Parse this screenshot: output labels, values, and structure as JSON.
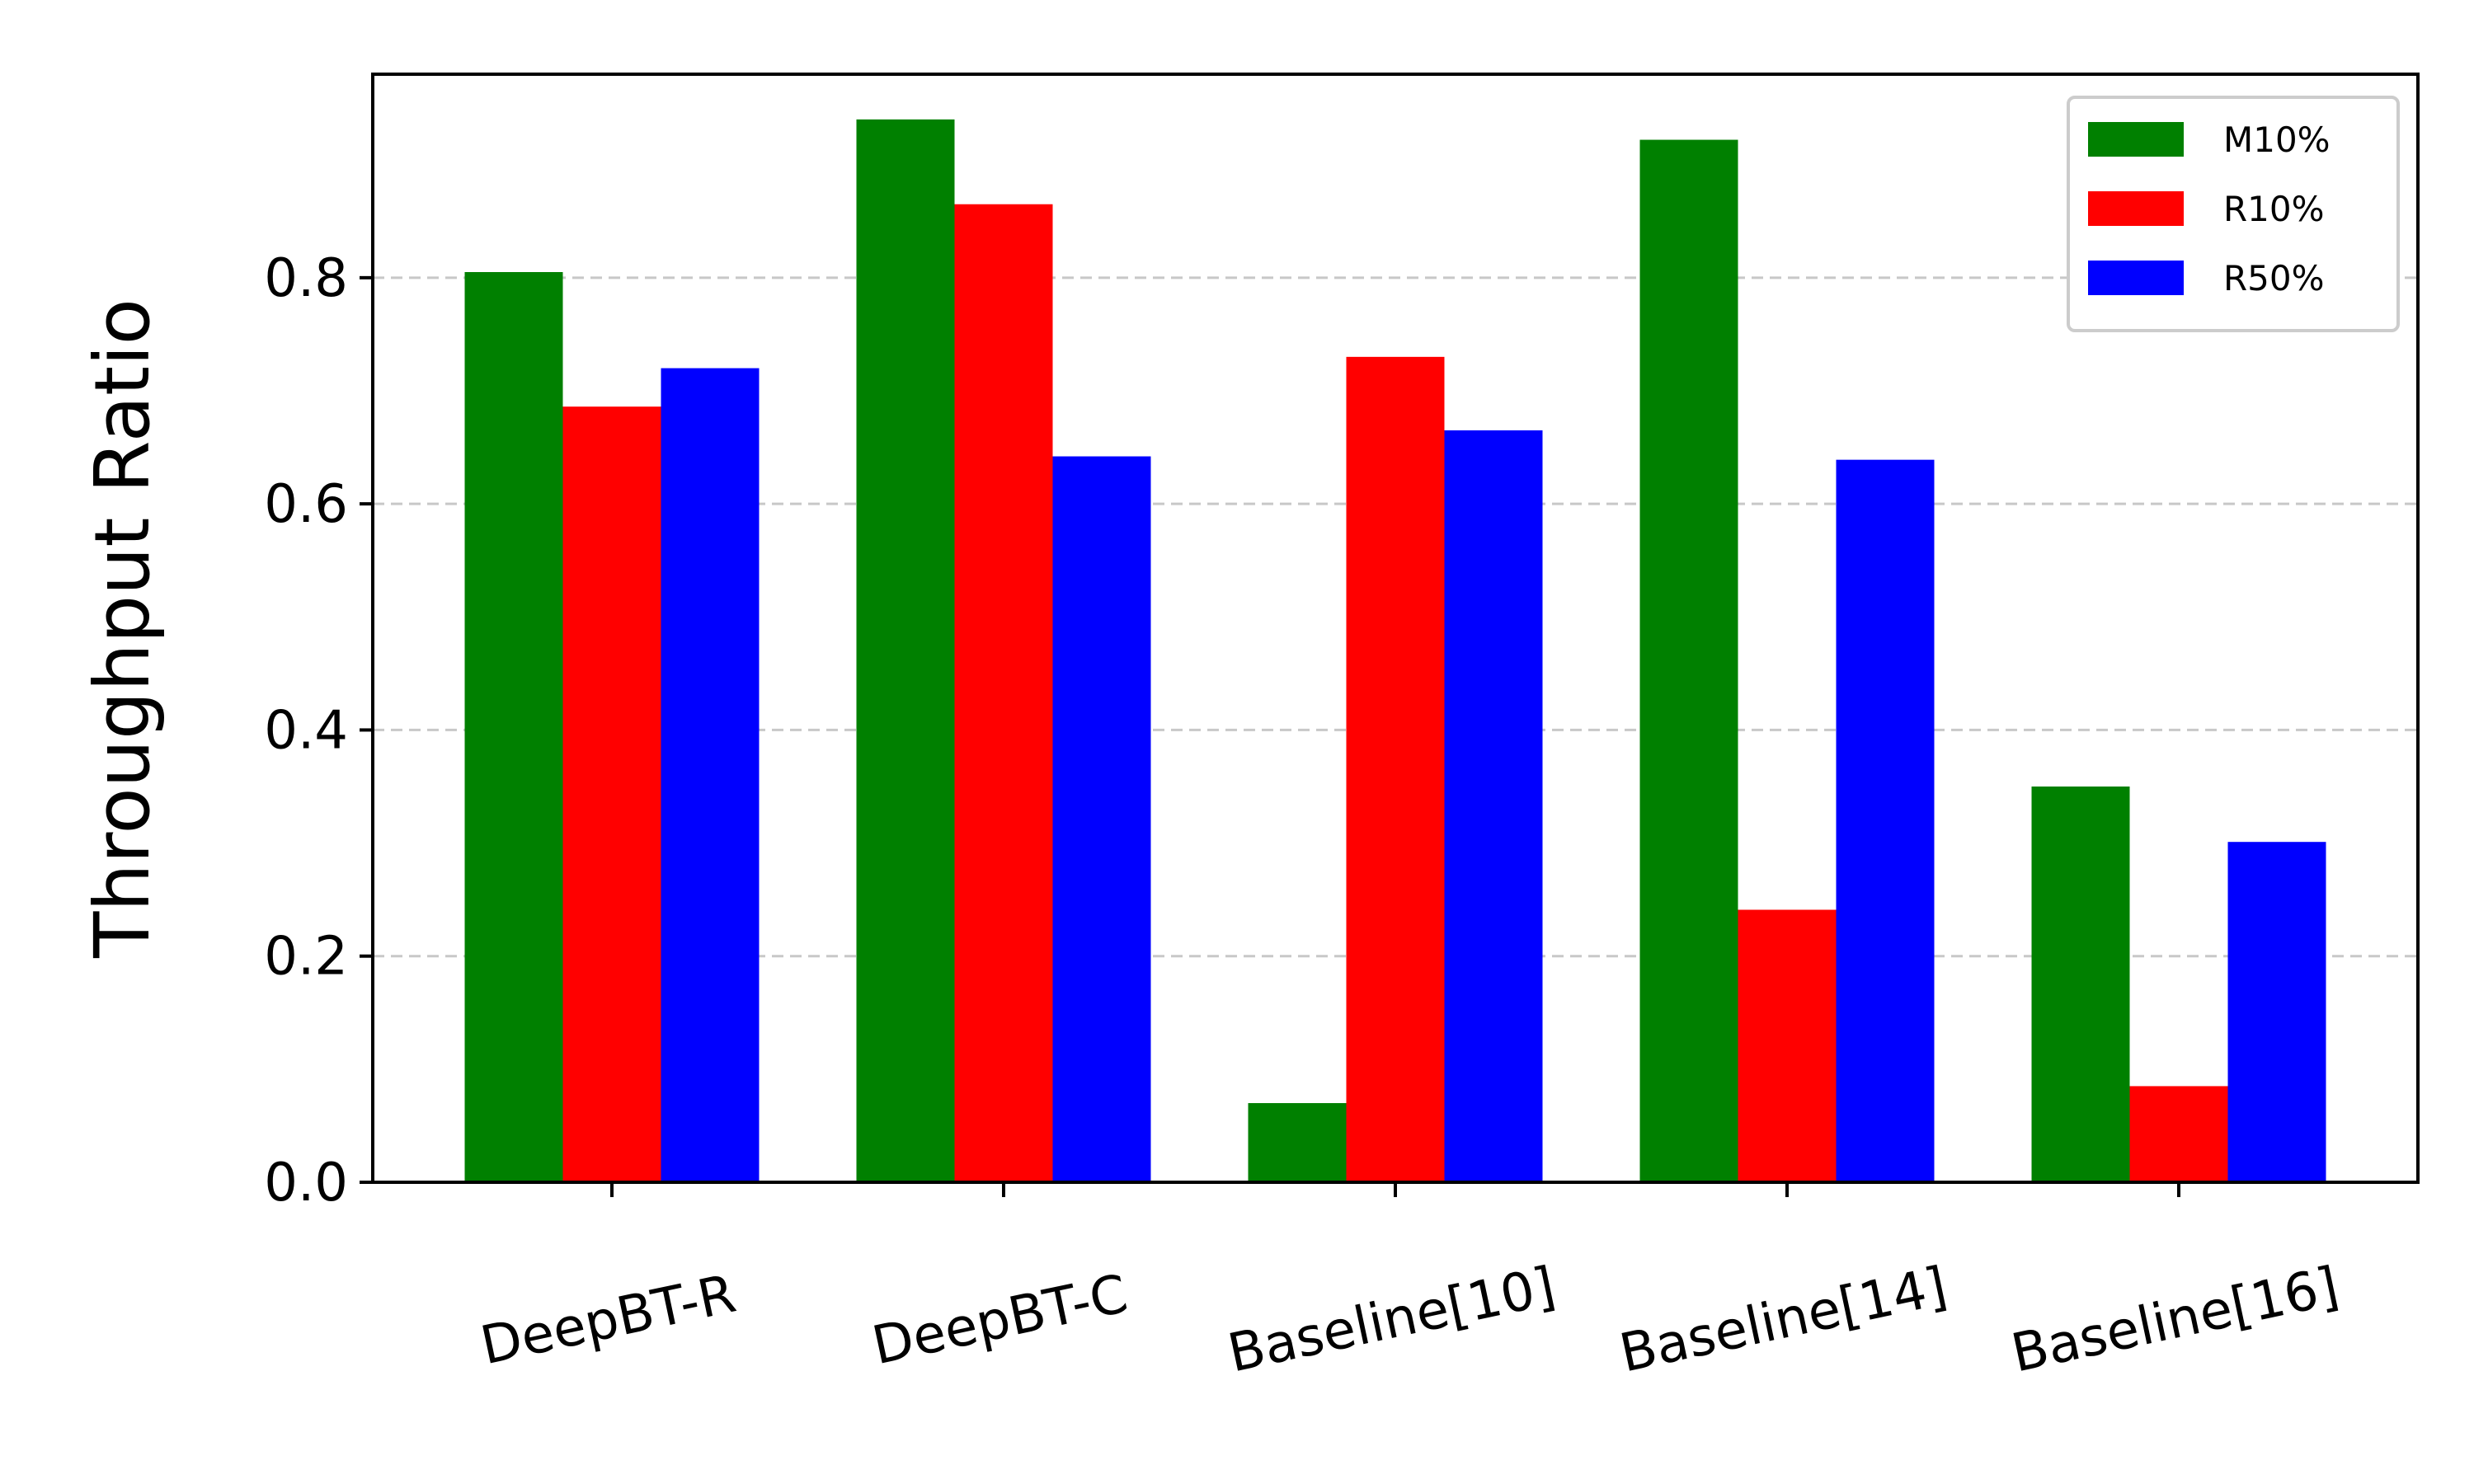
{
  "chart_data": {
    "type": "bar",
    "title": "",
    "xlabel": "",
    "ylabel": "Throughput Ratio",
    "ylim": [
      0,
      0.98
    ],
    "yticks": [
      "0.0",
      "0.2",
      "0.4",
      "0.6",
      "0.8"
    ],
    "ytick_values": [
      0,
      0.2,
      0.4,
      0.6,
      0.8
    ],
    "grid": "y-dashed",
    "legend_position": "top-right",
    "categories": [
      "DeepBT-R",
      "DeepBT-C",
      "Baseline[10]",
      "Baseline[14]",
      "Baseline[16]"
    ],
    "series": [
      {
        "name": "M10%",
        "color": "#008000",
        "values": [
          0.805,
          0.94,
          0.07,
          0.922,
          0.35
        ]
      },
      {
        "name": "R10%",
        "color": "#ff0000",
        "values": [
          0.686,
          0.865,
          0.73,
          0.241,
          0.085
        ]
      },
      {
        "name": "R50%",
        "color": "#0000ff",
        "values": [
          0.72,
          0.642,
          0.665,
          0.639,
          0.301
        ]
      }
    ]
  }
}
